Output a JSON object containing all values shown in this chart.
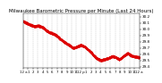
{
  "title": "Milwaukee Barometric Pressure per Minute (Last 24 Hours)",
  "title_fontsize": 4.0,
  "line_color": "#dd0000",
  "background_color": "#ffffff",
  "plot_bg_color": "#ffffff",
  "grid_color": "#aaaaaa",
  "ymin": 29.38,
  "ymax": 30.25,
  "yticks": [
    29.4,
    29.5,
    29.6,
    29.7,
    29.8,
    29.9,
    30.0,
    30.1,
    30.2
  ],
  "ytick_labels": [
    "29.4",
    "29.5",
    "29.6",
    "29.7",
    "29.8",
    "29.9",
    "30.0",
    "30.1",
    "30.2"
  ],
  "ytick_fontsize": 3.0,
  "xtick_fontsize": 2.8,
  "num_points": 1440,
  "x_labels": [
    "12 a",
    "1",
    "2",
    "3",
    "4",
    "5",
    "6",
    "7",
    "8",
    "9",
    "10",
    "11",
    "12 p",
    "1",
    "2",
    "3",
    "4",
    "5",
    "6",
    "7",
    "8",
    "9",
    "10",
    "11",
    "12 a"
  ],
  "curve": [
    [
      0.0,
      30.13
    ],
    [
      0.03,
      30.1
    ],
    [
      0.06,
      30.07
    ],
    [
      0.1,
      30.05
    ],
    [
      0.13,
      30.06
    ],
    [
      0.17,
      30.03
    ],
    [
      0.2,
      29.98
    ],
    [
      0.23,
      29.95
    ],
    [
      0.27,
      29.92
    ],
    [
      0.3,
      29.88
    ],
    [
      0.33,
      29.83
    ],
    [
      0.37,
      29.78
    ],
    [
      0.4,
      29.74
    ],
    [
      0.43,
      29.7
    ],
    [
      0.47,
      29.73
    ],
    [
      0.5,
      29.75
    ],
    [
      0.53,
      29.72
    ],
    [
      0.57,
      29.66
    ],
    [
      0.6,
      29.6
    ],
    [
      0.63,
      29.54
    ],
    [
      0.67,
      29.5
    ],
    [
      0.7,
      29.52
    ],
    [
      0.73,
      29.54
    ],
    [
      0.77,
      29.57
    ],
    [
      0.8,
      29.55
    ],
    [
      0.83,
      29.52
    ],
    [
      0.87,
      29.58
    ],
    [
      0.9,
      29.62
    ],
    [
      0.93,
      29.58
    ],
    [
      0.97,
      29.56
    ],
    [
      1.0,
      29.55
    ]
  ],
  "marker_size": 0.5,
  "linewidth": 0.5
}
